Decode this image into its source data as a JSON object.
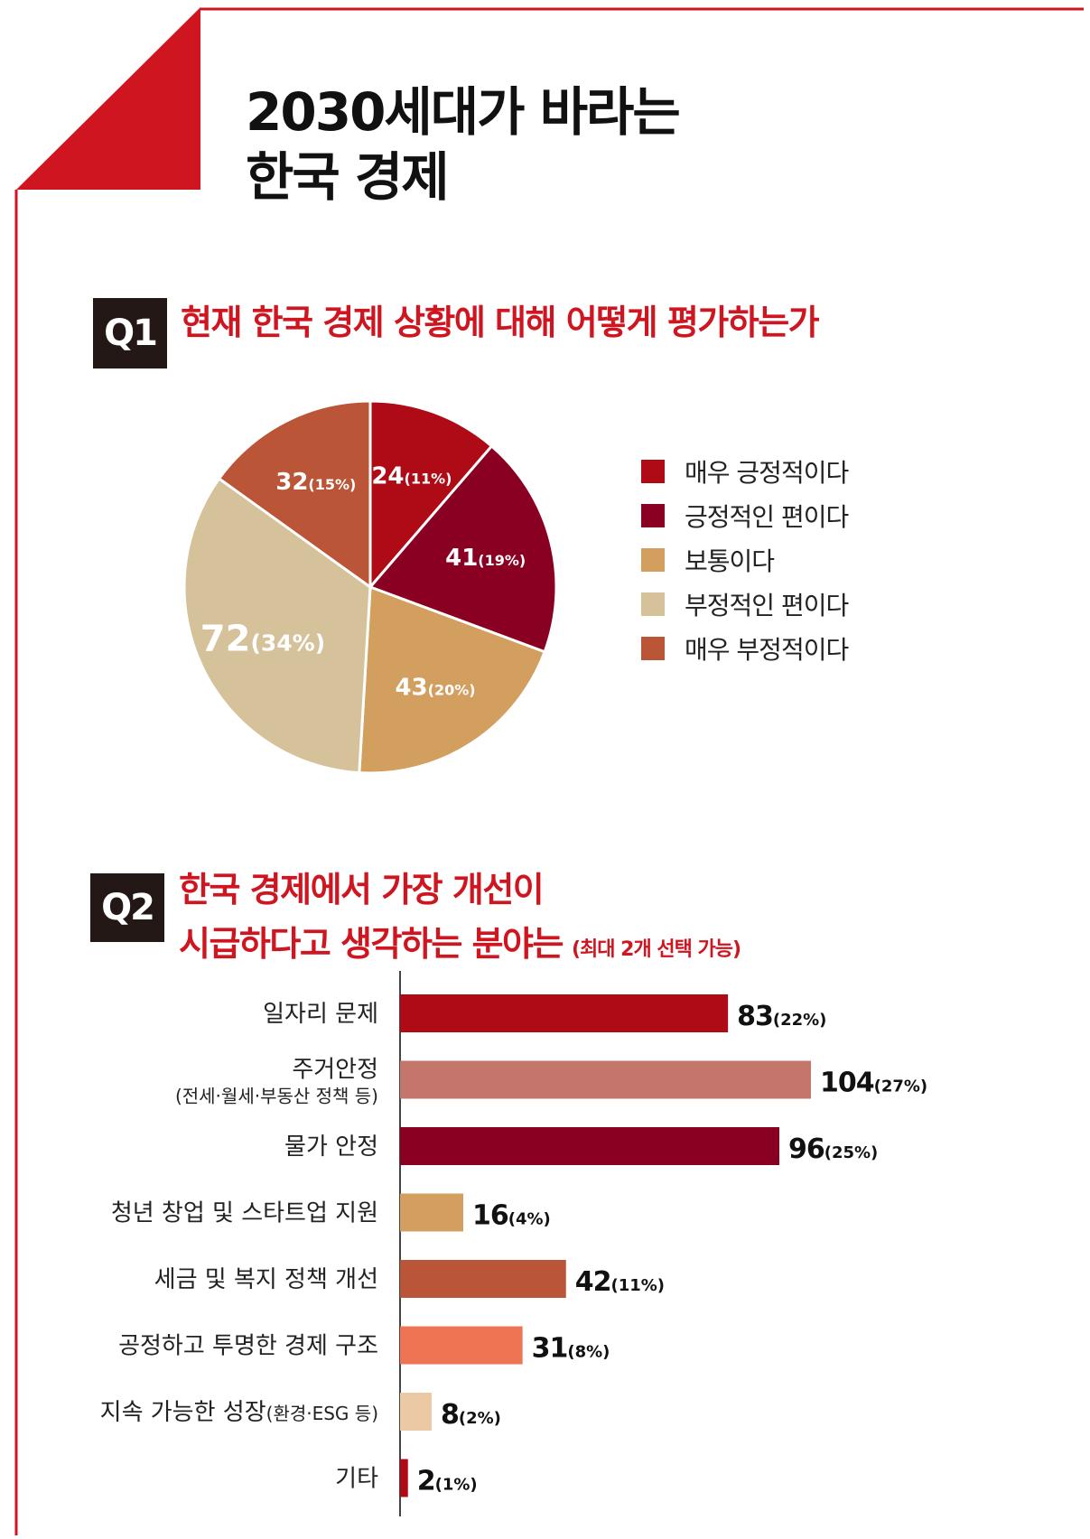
{
  "header": {
    "title_line1": "2030세대가 바라는",
    "title_line2": "한국 경제"
  },
  "colors": {
    "accent": "#cf1620",
    "badge": "#231815"
  },
  "q1": {
    "badge": "Q1",
    "question": "현재 한국 경제 상황에 대해 어떻게 평가하는가"
  },
  "q2": {
    "badge": "Q2",
    "question_line1": "한국 경제에서 가장 개선이",
    "question_line2": "시급하다고 생각하는 분야는",
    "note": "(최대 2개 선택 가능)"
  },
  "chart_data": [
    {
      "type": "pie",
      "title": "현재 한국 경제 상황에 대해 어떻게 평가하는가",
      "legend_position": "right",
      "slices": [
        {
          "label": "매우 긍정적이다",
          "value": 24,
          "percent": "11%",
          "color": "#ae0b17"
        },
        {
          "label": "긍정적인 편이다",
          "value": 41,
          "percent": "19%",
          "color": "#8a0022"
        },
        {
          "label": "보통이다",
          "value": 43,
          "percent": "20%",
          "color": "#d29f5f"
        },
        {
          "label": "부정적인 편이다",
          "value": 72,
          "percent": "34%",
          "color": "#d6c29a"
        },
        {
          "label": "매우 부정적이다",
          "value": 32,
          "percent": "15%",
          "color": "#bb5538"
        }
      ]
    },
    {
      "type": "bar",
      "orientation": "horizontal",
      "title": "한국 경제에서 가장 개선이 시급하다고 생각하는 분야는",
      "xlim": [
        0,
        104
      ],
      "bars": [
        {
          "label": "일자리 문제",
          "sublabel": "",
          "value": 83,
          "percent": "22%",
          "color": "#ae0b17"
        },
        {
          "label": "주거안정",
          "sublabel": "(전세·월세·부동산 정책 등)",
          "value": 104,
          "percent": "27%",
          "color": "#c4756c"
        },
        {
          "label": "물가 안정",
          "sublabel": "",
          "value": 96,
          "percent": "25%",
          "color": "#8a0022"
        },
        {
          "label": "청년 창업 및 스타트업 지원",
          "sublabel": "",
          "value": 16,
          "percent": "4%",
          "color": "#d29f5f"
        },
        {
          "label": "세금 및 복지 정책 개선",
          "sublabel": "",
          "value": 42,
          "percent": "11%",
          "color": "#bb5538"
        },
        {
          "label": "공정하고 투명한 경제 구조",
          "sublabel": "",
          "value": 31,
          "percent": "8%",
          "color": "#ee7454"
        },
        {
          "label": "지속 가능한 성장",
          "sublabel": "(환경·ESG 등)",
          "value": 8,
          "percent": "2%",
          "color": "#ebc9a5"
        },
        {
          "label": "기타",
          "sublabel": "",
          "value": 2,
          "percent": "1%",
          "color": "#ae0b17"
        }
      ]
    }
  ]
}
